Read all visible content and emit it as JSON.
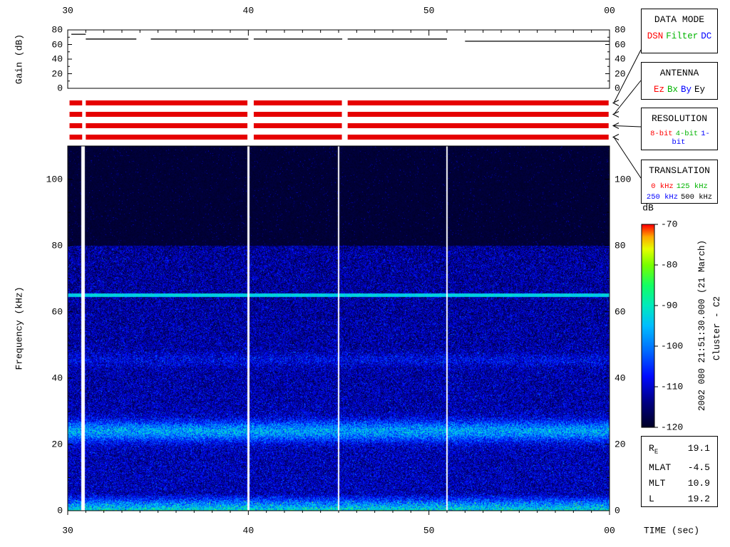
{
  "axes": {
    "time": {
      "label": "TIME (sec)",
      "range": [
        30,
        60
      ],
      "tick_values": [
        30,
        40,
        50,
        60
      ],
      "tick_labels": [
        "30",
        "40",
        "50",
        "00"
      ]
    },
    "gain": {
      "label": "Gain (dB)",
      "range": [
        0,
        80
      ],
      "ticks": [
        0,
        20,
        40,
        60,
        80
      ]
    },
    "freq": {
      "label": "Frequency (kHz)",
      "range": [
        0,
        110
      ],
      "ticks": [
        0,
        20,
        40,
        60,
        80,
        100
      ]
    }
  },
  "legend": {
    "data_mode": {
      "title": "DATA MODE",
      "options": [
        {
          "label": "DSN",
          "color": "#ff0000"
        },
        {
          "label": "Filter",
          "color": "#00b400"
        },
        {
          "label": "DC",
          "color": "#0000ff"
        }
      ]
    },
    "antenna": {
      "title": "ANTENNA",
      "options": [
        {
          "label": "Ez",
          "color": "#ff0000"
        },
        {
          "label": "Bx",
          "color": "#00b400"
        },
        {
          "label": "By",
          "color": "#0000ff"
        },
        {
          "label": "Ey",
          "color": "#000000"
        }
      ]
    },
    "resolution": {
      "title": "RESOLUTION",
      "options": [
        {
          "label": "8-bit",
          "color": "#ff0000"
        },
        {
          "label": "4-bit",
          "color": "#00b400"
        },
        {
          "label": "1-bit",
          "color": "#0000ff"
        }
      ]
    },
    "translation": {
      "title": "TRANSLATION",
      "options_rows": [
        [
          {
            "label": "0 kHz",
            "color": "#ff0000"
          },
          {
            "label": "125 kHz",
            "color": "#00b400"
          }
        ],
        [
          {
            "label": "250 kHz",
            "color": "#0000ff"
          },
          {
            "label": "500 kHz",
            "color": "#000000"
          }
        ]
      ]
    }
  },
  "colorbar": {
    "label": "dB",
    "range": [
      -120,
      -70
    ],
    "tick_labels": [
      "-70",
      "-80",
      "-90",
      "-100",
      "-110",
      "-120"
    ]
  },
  "annotations": {
    "datetime": "2002 080 21:51:30.000 (21 March)",
    "spacecraft": "Cluster - C2"
  },
  "ephemeris": {
    "rows": [
      {
        "label": "R",
        "subscript": "E",
        "value": "19.1"
      },
      {
        "label": "MLAT",
        "subscript": "",
        "value": "-4.5"
      },
      {
        "label": "MLT",
        "subscript": "",
        "value": "10.9"
      },
      {
        "label": "L",
        "subscript": "",
        "value": "19.2"
      }
    ]
  },
  "chart_data": [
    {
      "type": "line",
      "name": "agc-gain",
      "ylabel": "Gain (dB)",
      "xlabel": "TIME (sec)",
      "xlim": [
        30,
        60
      ],
      "ylim": [
        0,
        80
      ],
      "yticks": [
        0,
        20,
        40,
        60,
        80
      ],
      "xticks": [
        30,
        40,
        50,
        60
      ],
      "xtick_labels": [
        "30",
        "40",
        "50",
        "00"
      ],
      "segments": [
        {
          "t1": 30.2,
          "t2": 31.0,
          "db": 74
        },
        {
          "t1": 31.0,
          "t2": 33.8,
          "db": 67.5
        },
        {
          "t1": 34.6,
          "t2": 40.0,
          "db": 67.5
        },
        {
          "t1": 40.3,
          "t2": 45.2,
          "db": 67.5
        },
        {
          "t1": 45.5,
          "t2": 51.0,
          "db": 67.5
        },
        {
          "t1": 52.0,
          "t2": 60.0,
          "db": 64.5
        }
      ]
    },
    {
      "type": "bar",
      "name": "status-timeline",
      "color": "#e60000",
      "xlim": [
        30,
        60
      ],
      "rows": [
        {
          "name": "data-mode",
          "active": "DSN"
        },
        {
          "name": "antenna",
          "active": "Ez"
        },
        {
          "name": "resolution",
          "active": "8-bit"
        },
        {
          "name": "translation",
          "active": "0 kHz"
        }
      ],
      "segments": [
        [
          30.1,
          30.8
        ],
        [
          31.0,
          39.95
        ],
        [
          40.3,
          45.18
        ],
        [
          45.5,
          59.95
        ]
      ]
    },
    {
      "type": "heatmap",
      "name": "wbd-spectrogram",
      "xlabel": "TIME (sec)",
      "ylabel": "Frequency (kHz)",
      "zlabel": "dB",
      "xlim": [
        30,
        60
      ],
      "ylim": [
        0,
        110
      ],
      "zlim": [
        -120,
        -70
      ],
      "background_db": -118,
      "features": {
        "noise_band_top_khz": 80,
        "horizontal_line": {
          "freq_khz": 65,
          "db": -94
        },
        "bands": [
          {
            "freq_khz": 24,
            "sigma_khz": 2.2,
            "boost_db": 18
          },
          {
            "freq_khz": 45.5,
            "sigma_khz": 1.4,
            "boost_db": 5
          },
          {
            "freq_khz": 0,
            "sigma_khz": 5,
            "boost_db": 26
          }
        ],
        "white_vertical_lines_sec": [
          {
            "t": 30.85,
            "width": 0.22
          },
          {
            "t": 40.0,
            "width": 0.1
          },
          {
            "t": 45.0,
            "width": 0.1
          },
          {
            "t": 51.0,
            "width": 0.06
          }
        ]
      }
    }
  ]
}
